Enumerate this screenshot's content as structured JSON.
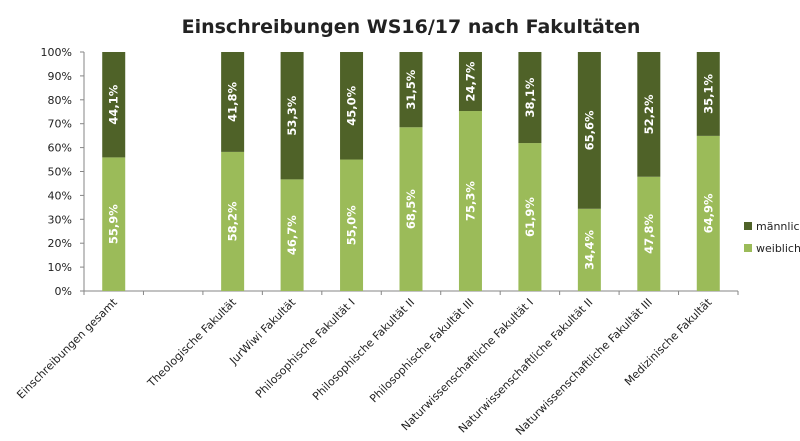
{
  "chart_data": {
    "type": "bar",
    "stacked": true,
    "percent_stacked": true,
    "title": "Einschreibungen WS16/17 nach Fakultäten",
    "xlabel": "",
    "ylabel": "",
    "ylim": [
      0,
      100
    ],
    "yticks": [
      "0%",
      "10%",
      "20%",
      "30%",
      "40%",
      "50%",
      "60%",
      "70%",
      "80%",
      "90%",
      "100%"
    ],
    "grid": false,
    "legend_position": "right",
    "categories": [
      "Einschreibungen gesamt",
      "",
      "Theologische Fakultät",
      "JurWiwi Fakultät",
      "Philosophische Fakultät I",
      "Philosophische Fakultät II",
      "Philosophische Fakultät III",
      "Naturwissenschaftliche Fakultät I",
      "Naturwissenschaftliche Fakultät II",
      "Naturwissenschaftliche Fakultät III",
      "Medizinische Fakultät"
    ],
    "series": [
      {
        "name": "weiblich",
        "color": "#9bbb59",
        "values": [
          55.9,
          null,
          58.2,
          46.7,
          55.0,
          68.5,
          75.3,
          61.9,
          34.4,
          47.8,
          64.9
        ],
        "labels": [
          "55,9%",
          "",
          "58,2%",
          "46,7%",
          "55,0%",
          "68,5%",
          "75,3%",
          "61,9%",
          "34,4%",
          "47,8%",
          "64,9%"
        ]
      },
      {
        "name": "männlich",
        "color": "#4f6228",
        "values": [
          44.1,
          null,
          41.8,
          53.3,
          45.0,
          31.5,
          24.7,
          38.1,
          65.6,
          52.2,
          35.1
        ],
        "labels": [
          "44,1%",
          "",
          "41,8%",
          "53,3%",
          "45,0%",
          "31,5%",
          "24,7%",
          "38,1%",
          "65,6%",
          "52,2%",
          "35,1%"
        ]
      }
    ],
    "legend_order": [
      "männlich",
      "weiblich"
    ]
  }
}
